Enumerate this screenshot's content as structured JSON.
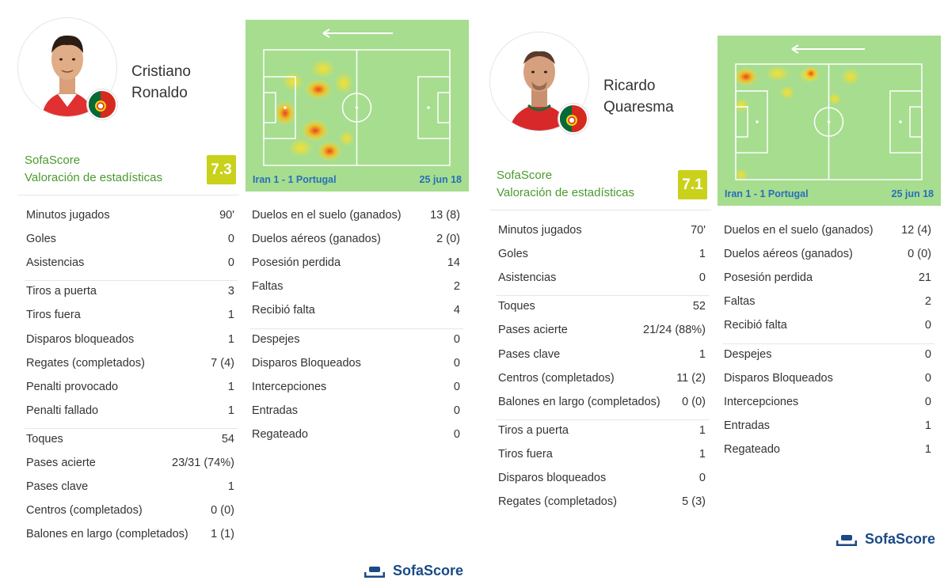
{
  "players": [
    {
      "name_line1": "Cristiano",
      "name_line2": "Ronaldo",
      "flag_icon": "portugal-flag-icon",
      "rating_brand": "SofaScore",
      "rating_label": "Valoración de estadísticas",
      "rating": "7.3",
      "rating_color": "#c9d11b",
      "match": "Iran 1 - 1 Portugal",
      "date": "25 jun 18",
      "left_stats": [
        [
          {
            "label": "Minutos jugados",
            "value": "90'"
          },
          {
            "label": "Goles",
            "value": "0"
          },
          {
            "label": "Asistencias",
            "value": "0"
          }
        ],
        [
          {
            "label": "Tiros a puerta",
            "value": "3"
          },
          {
            "label": "Tiros fuera",
            "value": "1"
          },
          {
            "label": "Disparos bloqueados",
            "value": "1"
          },
          {
            "label": "Regates (completados)",
            "value": "7 (4)"
          },
          {
            "label": "Penalti provocado",
            "value": "1"
          },
          {
            "label": "Penalti fallado",
            "value": "1"
          }
        ],
        [
          {
            "label": "Toques",
            "value": "54"
          },
          {
            "label": "Pases acierte",
            "value": "23/31 (74%)"
          },
          {
            "label": "Pases clave",
            "value": "1"
          },
          {
            "label": "Centros (completados)",
            "value": "0 (0)"
          },
          {
            "label": "Balones en largo (completados)",
            "value": "1 (1)"
          }
        ]
      ],
      "right_stats": [
        [
          {
            "label": "Duelos en el suelo (ganados)",
            "value": "13 (8)"
          },
          {
            "label": "Duelos aéreos (ganados)",
            "value": "2 (0)"
          },
          {
            "label": "Posesión perdida",
            "value": "14"
          },
          {
            "label": "Faltas",
            "value": "2"
          },
          {
            "label": "Recibió falta",
            "value": "4"
          }
        ],
        [
          {
            "label": "Despejes",
            "value": "0"
          },
          {
            "label": "Disparos Bloqueados",
            "value": "0"
          },
          {
            "label": "Intercepciones",
            "value": "0"
          },
          {
            "label": "Entradas",
            "value": "0"
          },
          {
            "label": "Regateado",
            "value": "0"
          }
        ]
      ]
    },
    {
      "name_line1": "Ricardo",
      "name_line2": "Quaresma",
      "flag_icon": "portugal-flag-icon",
      "rating_brand": "SofaScore",
      "rating_label": "Valoración de estadísticas",
      "rating": "7.1",
      "rating_color": "#c9d11b",
      "match": "Iran 1 - 1 Portugal",
      "date": "25 jun 18",
      "left_stats": [
        [
          {
            "label": "Minutos jugados",
            "value": "70'"
          },
          {
            "label": "Goles",
            "value": "1"
          },
          {
            "label": "Asistencias",
            "value": "0"
          }
        ],
        [
          {
            "label": "Toques",
            "value": "52"
          },
          {
            "label": "Pases acierte",
            "value": "21/24 (88%)"
          },
          {
            "label": "Pases clave",
            "value": "1"
          },
          {
            "label": "Centros (completados)",
            "value": "11 (2)"
          },
          {
            "label": "Balones en largo (completados)",
            "value": "0 (0)"
          }
        ],
        [
          {
            "label": "Tiros a puerta",
            "value": "1"
          },
          {
            "label": "Tiros fuera",
            "value": "1"
          },
          {
            "label": "Disparos bloqueados",
            "value": "0"
          },
          {
            "label": "Regates (completados)",
            "value": "5 (3)"
          }
        ]
      ],
      "right_stats": [
        [
          {
            "label": "Duelos en el suelo (ganados)",
            "value": "12 (4)"
          },
          {
            "label": "Duelos aéreos (ganados)",
            "value": "0 (0)"
          },
          {
            "label": "Posesión perdida",
            "value": "21"
          },
          {
            "label": "Faltas",
            "value": "2"
          },
          {
            "label": "Recibió falta",
            "value": "0"
          }
        ],
        [
          {
            "label": "Despejes",
            "value": "0"
          },
          {
            "label": "Disparos Bloqueados",
            "value": "0"
          },
          {
            "label": "Intercepciones",
            "value": "0"
          },
          {
            "label": "Entradas",
            "value": "1"
          },
          {
            "label": "Regateado",
            "value": "1"
          }
        ]
      ]
    }
  ],
  "brand": {
    "name": "SofaScore",
    "icon": "sofascore-logo-icon",
    "color": "#1a4a86"
  },
  "colors": {
    "pitch": "#a6dd8f",
    "rating_text": "#4a9a2e",
    "match_text": "#2a6fb8"
  }
}
